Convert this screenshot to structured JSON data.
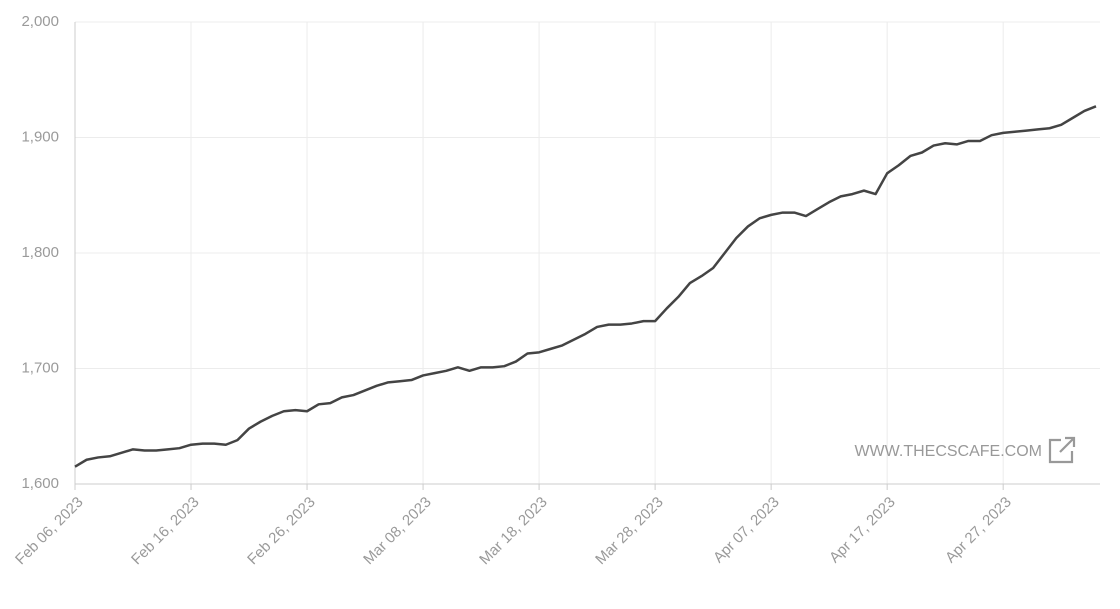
{
  "chart_data": {
    "type": "line",
    "x": [
      "2023-02-06",
      "2023-02-07",
      "2023-02-08",
      "2023-02-09",
      "2023-02-10",
      "2023-02-11",
      "2023-02-12",
      "2023-02-13",
      "2023-02-14",
      "2023-02-15",
      "2023-02-16",
      "2023-02-17",
      "2023-02-18",
      "2023-02-19",
      "2023-02-20",
      "2023-02-21",
      "2023-02-22",
      "2023-02-23",
      "2023-02-24",
      "2023-02-25",
      "2023-02-26",
      "2023-02-27",
      "2023-02-28",
      "2023-03-01",
      "2023-03-02",
      "2023-03-03",
      "2023-03-04",
      "2023-03-05",
      "2023-03-06",
      "2023-03-07",
      "2023-03-08",
      "2023-03-09",
      "2023-03-10",
      "2023-03-11",
      "2023-03-12",
      "2023-03-13",
      "2023-03-14",
      "2023-03-15",
      "2023-03-16",
      "2023-03-17",
      "2023-03-18",
      "2023-03-19",
      "2023-03-20",
      "2023-03-21",
      "2023-03-22",
      "2023-03-23",
      "2023-03-24",
      "2023-03-25",
      "2023-03-26",
      "2023-03-27",
      "2023-03-28",
      "2023-03-29",
      "2023-03-30",
      "2023-03-31",
      "2023-04-01",
      "2023-04-02",
      "2023-04-03",
      "2023-04-04",
      "2023-04-05",
      "2023-04-06",
      "2023-04-07",
      "2023-04-08",
      "2023-04-09",
      "2023-04-10",
      "2023-04-11",
      "2023-04-12",
      "2023-04-13",
      "2023-04-14",
      "2023-04-15",
      "2023-04-16",
      "2023-04-17",
      "2023-04-18",
      "2023-04-19",
      "2023-04-20",
      "2023-04-21",
      "2023-04-22",
      "2023-04-23",
      "2023-04-24",
      "2023-04-25",
      "2023-04-26",
      "2023-04-27",
      "2023-04-28",
      "2023-04-29",
      "2023-04-30",
      "2023-05-01",
      "2023-05-02",
      "2023-05-03",
      "2023-05-04",
      "2023-05-05"
    ],
    "series": [
      {
        "color": "#444444",
        "values": [
          1615,
          1621,
          1623,
          1624,
          1627,
          1630,
          1629,
          1629,
          1630,
          1631,
          1634,
          1635,
          1635,
          1634,
          1638,
          1648,
          1654,
          1659,
          1663,
          1664,
          1663,
          1669,
          1670,
          1675,
          1677,
          1681,
          1685,
          1688,
          1689,
          1690,
          1694,
          1696,
          1698,
          1701,
          1698,
          1701,
          1701,
          1702,
          1706,
          1713,
          1714,
          1717,
          1720,
          1725,
          1730,
          1736,
          1738,
          1738,
          1739,
          1741,
          1741,
          1752,
          1762,
          1774,
          1780,
          1787,
          1800,
          1813,
          1823,
          1830,
          1833,
          1835,
          1835,
          1832,
          1838,
          1844,
          1849,
          1851,
          1854,
          1851,
          1869,
          1876,
          1884,
          1887,
          1893,
          1895,
          1894,
          1897,
          1897,
          1902,
          1904,
          1905,
          1906,
          1907,
          1908,
          1911,
          1917,
          1923,
          1927
        ]
      }
    ],
    "xlim": [
      "2023-02-06",
      "2023-05-05"
    ],
    "xticks": [
      {
        "value": "2023-02-06",
        "label": "Feb 06, 2023"
      },
      {
        "value": "2023-02-16",
        "label": "Feb 16, 2023"
      },
      {
        "value": "2023-02-26",
        "label": "Feb 26, 2023"
      },
      {
        "value": "2023-03-08",
        "label": "Mar 08, 2023"
      },
      {
        "value": "2023-03-18",
        "label": "Mar 18, 2023"
      },
      {
        "value": "2023-03-28",
        "label": "Mar 28, 2023"
      },
      {
        "value": "2023-04-07",
        "label": "Apr 07, 2023"
      },
      {
        "value": "2023-04-17",
        "label": "Apr 17, 2023"
      },
      {
        "value": "2023-04-27",
        "label": "Apr 27, 2023"
      }
    ],
    "ylim": [
      1600,
      2000
    ],
    "yticks": [
      {
        "value": 1600,
        "label": "1,600"
      },
      {
        "value": 1700,
        "label": "1,700"
      },
      {
        "value": 1800,
        "label": "1,800"
      },
      {
        "value": 1900,
        "label": "1,900"
      },
      {
        "value": 2000,
        "label": "2,000"
      }
    ],
    "grid": true,
    "watermark": "WWW.THECSCAFE.COM"
  }
}
